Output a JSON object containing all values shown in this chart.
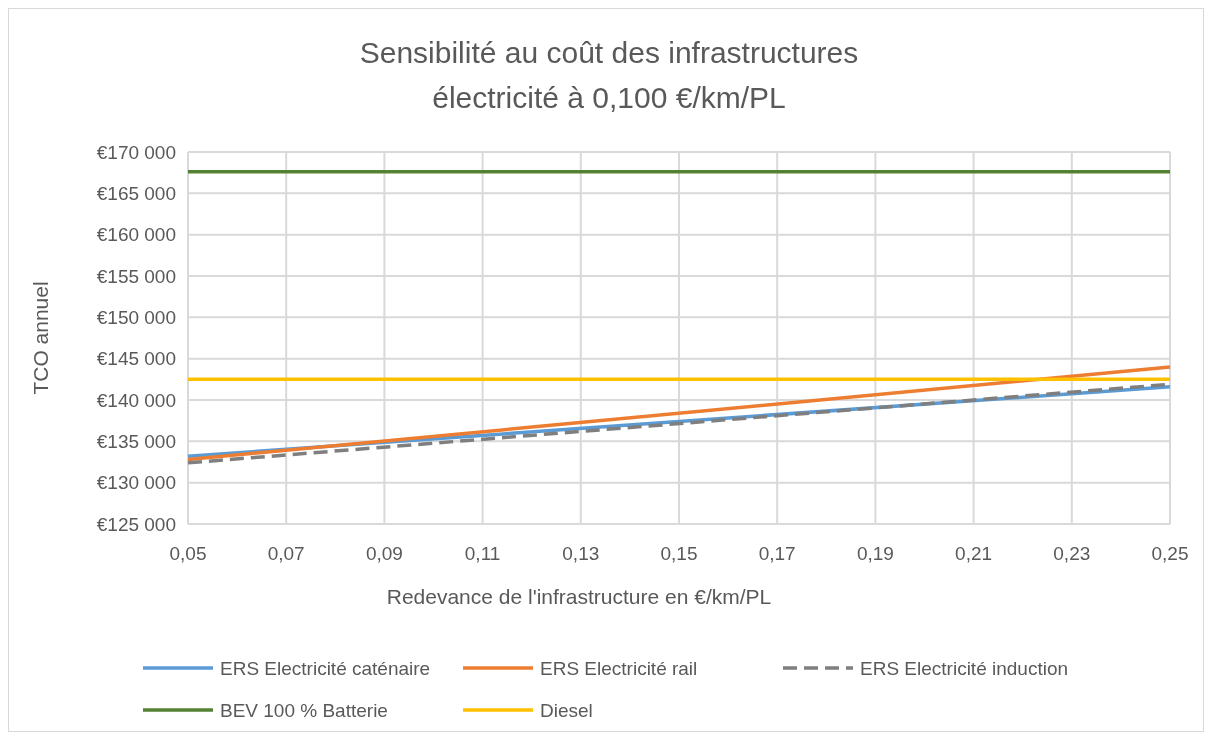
{
  "chart_data": {
    "type": "line",
    "title": "Sensibilité au coût des infrastructures\nélectricité à 0,100 €/km/PL",
    "xlabel": "Redevance de l'infrastructure en €/km/PL",
    "ylabel": "TCO annuel",
    "x": [
      0.05,
      0.25
    ],
    "series": [
      {
        "name": "ERS Electricité caténaire",
        "color": "#5b9bd5",
        "values": [
          133200,
          141600
        ]
      },
      {
        "name": "ERS Electricité rail",
        "color": "#ed7d31",
        "values": [
          132800,
          144000
        ]
      },
      {
        "name": "ERS Electricité induction",
        "color": "#7f7f7f",
        "values": [
          132400,
          141900
        ],
        "line_style": "dashed"
      },
      {
        "name": "BEV 100 % Batterie",
        "color": "#548235",
        "values": [
          167600,
          167600
        ]
      },
      {
        "name": "Diesel",
        "color": "#ffc000",
        "values": [
          142500,
          142500
        ]
      }
    ],
    "xlim": [
      0.05,
      0.25
    ],
    "xticks": [
      {
        "value": 0.05,
        "label": "0,05"
      },
      {
        "value": 0.07,
        "label": "0,07"
      },
      {
        "value": 0.09,
        "label": "0,09"
      },
      {
        "value": 0.11,
        "label": "0,11"
      },
      {
        "value": 0.13,
        "label": "0,13"
      },
      {
        "value": 0.15,
        "label": "0,15"
      },
      {
        "value": 0.17,
        "label": "0,17"
      },
      {
        "value": 0.19,
        "label": "0,19"
      },
      {
        "value": 0.21,
        "label": "0,21"
      },
      {
        "value": 0.23,
        "label": "0,23"
      },
      {
        "value": 0.25,
        "label": "0,25"
      }
    ],
    "ylim": [
      125000,
      170000
    ],
    "yticks": [
      {
        "value": 125000,
        "label": "€125 000"
      },
      {
        "value": 130000,
        "label": "€130 000"
      },
      {
        "value": 135000,
        "label": "€135 000"
      },
      {
        "value": 140000,
        "label": "€140 000"
      },
      {
        "value": 145000,
        "label": "€145 000"
      },
      {
        "value": 150000,
        "label": "€150 000"
      },
      {
        "value": 155000,
        "label": "€155 000"
      },
      {
        "value": 160000,
        "label": "€160 000"
      },
      {
        "value": 165000,
        "label": "€165 000"
      },
      {
        "value": 170000,
        "label": "€170 000"
      }
    ],
    "grid": true,
    "legend": "bottom",
    "line_style": "solid"
  }
}
